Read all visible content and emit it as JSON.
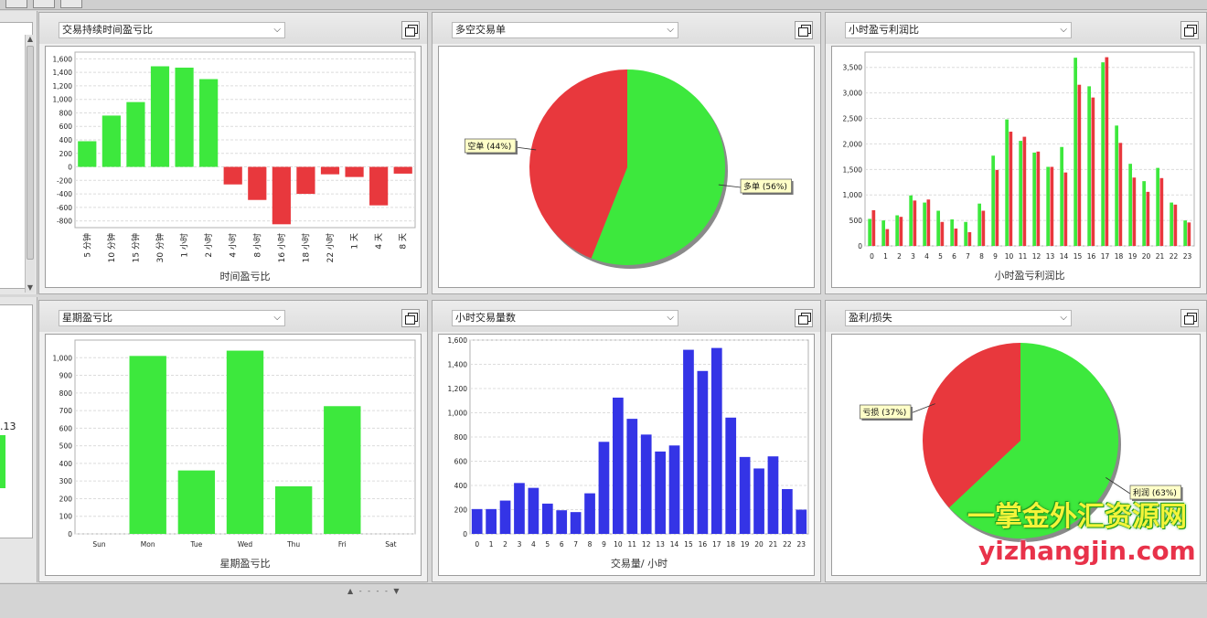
{
  "panels": [
    {
      "id": "p1",
      "title": "交易持续时间盈亏比",
      "restore_label": "还原"
    },
    {
      "id": "p2",
      "title": "多空交易单",
      "restore_label": "还原"
    },
    {
      "id": "p3",
      "title": "小时盈亏利润比",
      "restore_label": "还原"
    },
    {
      "id": "p4",
      "title": "星期盈亏比",
      "restore_label": "还原"
    },
    {
      "id": "p5",
      "title": "小时交易量数",
      "restore_label": "还原"
    },
    {
      "id": "p6",
      "title": "盈利/损失",
      "restore_label": "还原"
    }
  ],
  "left_pane": {
    "partial_value": ".13"
  },
  "watermark": {
    "line1": "一掌金外汇资源网",
    "line2": "yizhangjin.com"
  },
  "colors": {
    "green": "#3de83d",
    "red": "#e8383d",
    "blue": "#3434e6"
  },
  "chart_data": [
    {
      "id": "p1",
      "type": "bar",
      "categories": [
        "5 分钟",
        "10 分钟",
        "15 分钟",
        "30 分钟",
        "1 小时",
        "2 小时",
        "4 小时",
        "8 小时",
        "16 小时",
        "18 小时",
        "22 小时",
        "1 天",
        "4 天",
        "8 天"
      ],
      "values": [
        380,
        760,
        960,
        1490,
        1470,
        1300,
        -260,
        -490,
        -850,
        -400,
        -110,
        -150,
        -570,
        -100
      ],
      "xlabel": "时间盈亏比",
      "ylim": [
        -900,
        1700
      ],
      "yticks": [
        -800,
        -600,
        -400,
        -200,
        0,
        200,
        400,
        600,
        800,
        1000,
        1200,
        1400,
        1600
      ],
      "grid": true,
      "legend": "none"
    },
    {
      "id": "p2",
      "type": "pie",
      "slices": [
        {
          "label": "多单 (56%)",
          "value": 56,
          "color": "#3de83d"
        },
        {
          "label": "空单 (44%)",
          "value": 44,
          "color": "#e8383d"
        }
      ],
      "legend": "none"
    },
    {
      "id": "p3",
      "type": "bar",
      "categories": [
        "0",
        "1",
        "2",
        "3",
        "4",
        "5",
        "6",
        "7",
        "8",
        "9",
        "10",
        "11",
        "12",
        "13",
        "14",
        "15",
        "16",
        "17",
        "18",
        "19",
        "20",
        "21",
        "22",
        "23"
      ],
      "series": [
        {
          "values": [
            530,
            500,
            600,
            990,
            850,
            690,
            520,
            470,
            830,
            1770,
            2480,
            2060,
            1830,
            1550,
            1940,
            3690,
            3130,
            3600,
            2360,
            1610,
            1270,
            1530,
            850,
            500
          ],
          "color": "#3de83d"
        },
        {
          "values": [
            700,
            330,
            570,
            890,
            910,
            470,
            340,
            270,
            690,
            1490,
            2240,
            2140,
            1850,
            1550,
            1440,
            3160,
            2910,
            3700,
            2020,
            1340,
            1060,
            1330,
            810,
            460
          ],
          "color": "#e8383d"
        }
      ],
      "xlabel": "小时盈亏利润比",
      "ylim": [
        0,
        3800
      ],
      "yticks": [
        0,
        500,
        1000,
        1500,
        2000,
        2500,
        3000,
        3500
      ],
      "grid": true,
      "legend": "none"
    },
    {
      "id": "p4",
      "type": "bar",
      "categories": [
        "Sun",
        "Mon",
        "Tue",
        "Wed",
        "Thu",
        "Fri",
        "Sat"
      ],
      "values": [
        0,
        1010,
        360,
        1040,
        270,
        725,
        0
      ],
      "xlabel": "星期盈亏比",
      "ylim": [
        0,
        1100
      ],
      "yticks": [
        0,
        100,
        200,
        300,
        400,
        500,
        600,
        700,
        800,
        900,
        1000
      ],
      "grid": true,
      "legend": "none"
    },
    {
      "id": "p5",
      "type": "bar",
      "categories": [
        "0",
        "1",
        "2",
        "3",
        "4",
        "5",
        "6",
        "7",
        "8",
        "9",
        "10",
        "11",
        "12",
        "13",
        "14",
        "15",
        "16",
        "17",
        "18",
        "19",
        "20",
        "21",
        "22",
        "23"
      ],
      "values": [
        205,
        205,
        275,
        420,
        380,
        250,
        195,
        180,
        335,
        760,
        1125,
        950,
        820,
        680,
        730,
        1520,
        1345,
        1535,
        960,
        635,
        540,
        640,
        370,
        200
      ],
      "xlabel": "交易量/ 小时",
      "ylim": [
        0,
        1600
      ],
      "yticks": [
        0,
        200,
        400,
        600,
        800,
        1000,
        1200,
        1400,
        1600
      ],
      "grid": true,
      "legend": "none"
    },
    {
      "id": "p6",
      "type": "pie",
      "slices": [
        {
          "label": "利润 (63%)",
          "value": 63,
          "color": "#3de83d"
        },
        {
          "label": "亏损 (37%)",
          "value": 37,
          "color": "#e8383d"
        }
      ],
      "legend": "none"
    }
  ]
}
